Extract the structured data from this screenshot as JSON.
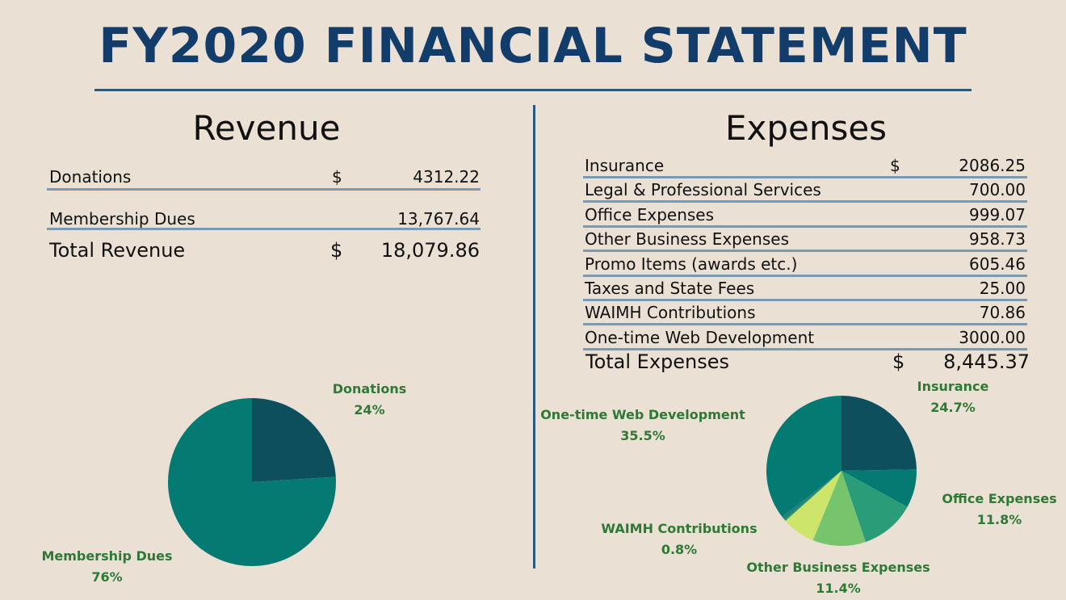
{
  "title": "FY2020 FINANCIAL STATEMENT",
  "revenue": {
    "heading": "Revenue",
    "rows": [
      {
        "label": "Donations",
        "currency": "$",
        "value": "4312.22"
      },
      {
        "label": "Membership Dues",
        "currency": "",
        "value": "13,767.64"
      }
    ],
    "total": {
      "label": "Total Revenue",
      "currency": "$",
      "value": "18,079.86"
    }
  },
  "expenses": {
    "heading": "Expenses",
    "rows": [
      {
        "label": "Insurance",
        "currency": "$",
        "value": "2086.25"
      },
      {
        "label": "Legal & Professional Services",
        "currency": "",
        "value": "700.00"
      },
      {
        "label": "Office Expenses",
        "currency": "",
        "value": "999.07"
      },
      {
        "label": "Other Business Expenses",
        "currency": "",
        "value": "958.73"
      },
      {
        "label": "Promo Items (awards etc.)",
        "currency": "",
        "value": "605.46"
      },
      {
        "label": "Taxes and State Fees",
        "currency": "",
        "value": "25.00"
      },
      {
        "label": "WAIMH Contributions",
        "currency": "",
        "value": "70.86"
      },
      {
        "label": "One-time Web Development",
        "currency": "",
        "value": "3000.00"
      }
    ],
    "total": {
      "label": "Total Expenses",
      "currency": "$",
      "value": "8,445.37"
    }
  },
  "chart_data": [
    {
      "type": "pie",
      "title": "",
      "slices": [
        {
          "name": "Donations",
          "value": 24,
          "label": "24%",
          "color": "#0d4f5c"
        },
        {
          "name": "Membership Dues",
          "value": 76,
          "label": "76%",
          "color": "#047a72"
        }
      ]
    },
    {
      "type": "pie",
      "title": "",
      "slices": [
        {
          "name": "Insurance",
          "value": 24.7,
          "label": "24.7%",
          "color": "#0d4f5c"
        },
        {
          "name": "",
          "value": 8.3,
          "label": "",
          "color": "#047a72"
        },
        {
          "name": "Office Expenses",
          "value": 11.8,
          "label": "11.8%",
          "color": "#2a9d78"
        },
        {
          "name": "Other Business Expenses",
          "value": 11.4,
          "label": "11.4%",
          "color": "#76c46c"
        },
        {
          "name": "",
          "value": 7.2,
          "label": "",
          "color": "#cde56a"
        },
        {
          "name": "",
          "value": 0.3,
          "label": "",
          "color": "#2f8f6f"
        },
        {
          "name": "WAIMH Contributions",
          "value": 0.8,
          "label": "0.8%",
          "color": "#1f8478"
        },
        {
          "name": "One-time Web Development",
          "value": 35.5,
          "label": "35.5%",
          "color": "#047a72"
        }
      ]
    }
  ]
}
